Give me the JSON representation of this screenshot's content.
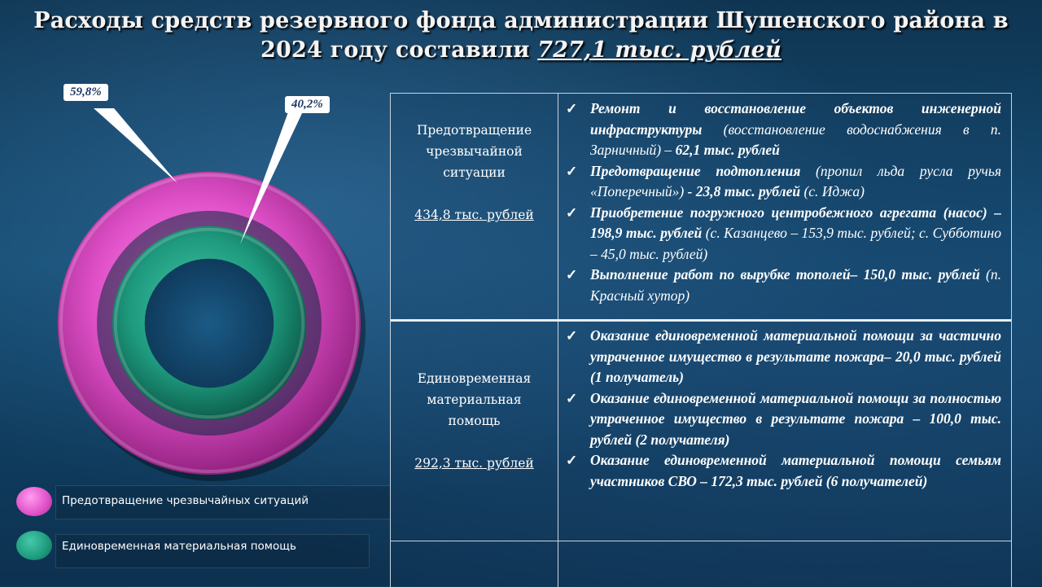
{
  "title": {
    "text": "Расходы средств резервного фонда администрации Шушенского района в 2024 году составили",
    "amount": "727,1 тыс. рублей"
  },
  "chart_data": {
    "type": "pie",
    "categories": [
      "Предотвращение чрезвычайных ситуаций",
      "Единовременная материальная помощь"
    ],
    "values": [
      59.8,
      40.2
    ],
    "data_labels": [
      "59,8%",
      "40,2%"
    ],
    "colors": [
      "#e050c8",
      "#1e9a7e"
    ],
    "legend_position": "bottom-left"
  },
  "legend": [
    {
      "label": "Предотвращение чрезвычайных ситуаций",
      "color": "#e050c8"
    },
    {
      "label": "Единовременная материальная помощь",
      "color": "#1e9a7e"
    }
  ],
  "rows": [
    {
      "category": "Предотвращение чрезвычайной ситуации",
      "sum": "434,8 тыс. рублей",
      "items": [
        [
          {
            "t": "Ремонт и восстановление объектов инженерной инфраструктуры",
            "b": true
          },
          {
            "t": " (восстановление водоснабжения в п. Зарничный) – ",
            "b": false
          },
          {
            "t": "62,1 тыс. рублей",
            "b": true
          }
        ],
        [
          {
            "t": "Предотвращение подтопления",
            "b": true
          },
          {
            "t": " (пропил льда русла ручья «Поперечный») ",
            "b": false
          },
          {
            "t": "- 23,8 тыс. рублей",
            "b": true
          },
          {
            "t": " (с. Иджа)",
            "b": false
          }
        ],
        [
          {
            "t": "Приобретение погружного центробежного агрегата (насос) – 198,9 тыс. рублей",
            "b": true
          },
          {
            "t": " (с. Казанцево – 153,9 тыс. рублей; с. Субботино – 45,0 тыс. рублей)",
            "b": false
          }
        ],
        [
          {
            "t": "Выполнение работ по вырубке тополей– 150,0 тыс. рублей",
            "b": true
          },
          {
            "t": " (п. Красный хутор)",
            "b": false
          }
        ]
      ]
    },
    {
      "category": "Единовременная материальная помощь",
      "sum": "292,3 тыс. рублей",
      "items": [
        [
          {
            "t": "Оказание единовременной материальной помощи за частично утраченное имущество в результате пожара– 20,0 тыс. рублей (1 получатель)",
            "b": true
          }
        ],
        [
          {
            "t": "Оказание единовременной материальной помощи за полностью утраченное имущество в результате пожара – 100,0 тыс. рублей (2 получателя)",
            "b": true
          }
        ],
        [
          {
            "t": "Оказание единовременной материальной помощи семьям участников СВО – 172,3 тыс. рублей (6 получателей)",
            "b": true
          }
        ]
      ]
    }
  ],
  "check_glyph": "✓"
}
